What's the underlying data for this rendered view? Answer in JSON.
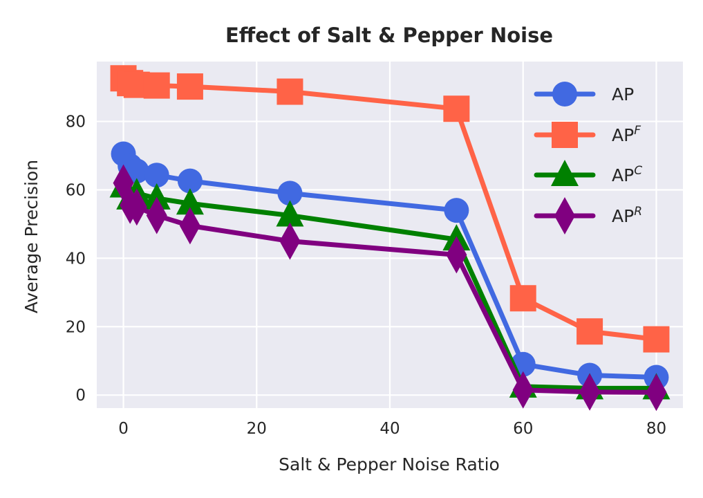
{
  "chart_data": {
    "type": "line",
    "title": "Effect of Salt & Pepper Noise",
    "xlabel": "Salt & Pepper Noise Ratio",
    "ylabel": "Average Precision",
    "x": [
      0,
      1,
      2,
      5,
      10,
      25,
      50,
      60,
      70,
      80
    ],
    "xlim": [
      -4,
      84
    ],
    "ylim": [
      -3.8,
      97.5
    ],
    "xticks": [
      0,
      20,
      40,
      60,
      80
    ],
    "xtick_labels": [
      "0",
      "20",
      "40",
      "60",
      "80"
    ],
    "yticks": [
      0,
      20,
      40,
      60,
      80
    ],
    "ytick_labels": [
      "0",
      "20",
      "40",
      "60",
      "80"
    ],
    "grid": true,
    "style": "seaborn-darkgrid",
    "background_color": "#eaeaf2",
    "legend_position": "top-right",
    "series": [
      {
        "name": "AP",
        "label_base": "AP",
        "label_sup": "",
        "color": "#4169e1",
        "marker": "circle",
        "values": [
          70.5,
          67.0,
          65.5,
          64.3,
          62.6,
          59.0,
          54.0,
          9.0,
          5.8,
          5.2
        ]
      },
      {
        "name": "AP^F",
        "label_base": "AP",
        "label_sup": "F",
        "color": "#ff6347",
        "marker": "square",
        "values": [
          92.6,
          91.2,
          90.7,
          90.5,
          90.2,
          88.7,
          83.7,
          28.3,
          18.6,
          16.3
        ]
      },
      {
        "name": "AP^C",
        "label_base": "AP",
        "label_sup": "C",
        "color": "#008000",
        "marker": "triangle",
        "values": [
          61.0,
          57.5,
          59.0,
          57.5,
          56.0,
          52.5,
          45.5,
          2.5,
          2.0,
          2.0
        ]
      },
      {
        "name": "AP^R",
        "label_base": "AP",
        "label_sup": "R",
        "color": "#800080",
        "marker": "diamond",
        "values": [
          62.0,
          55.5,
          55.0,
          52.5,
          49.5,
          45.0,
          41.0,
          1.5,
          0.9,
          0.8
        ]
      }
    ]
  }
}
